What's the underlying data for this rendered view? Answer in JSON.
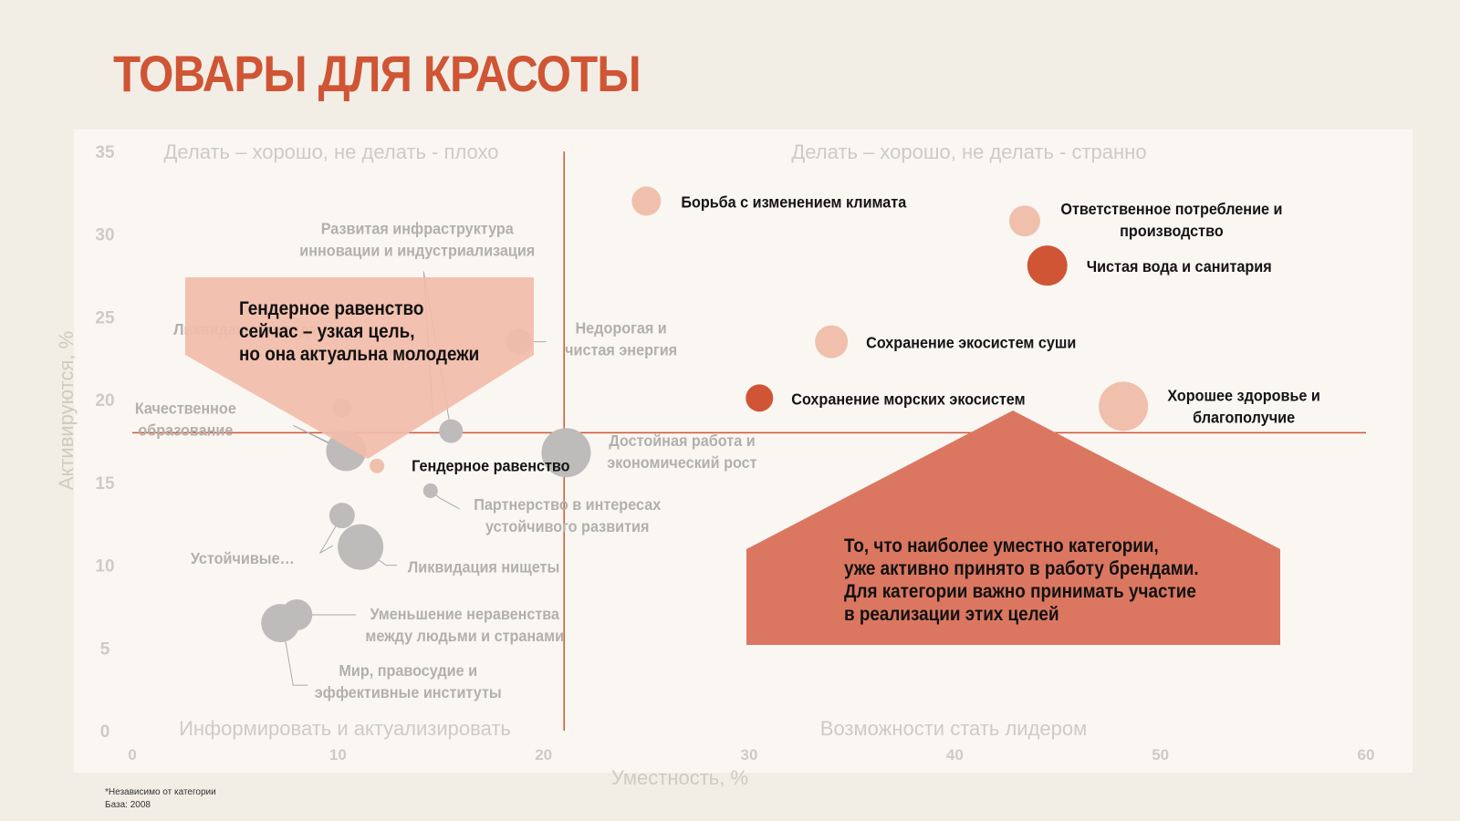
{
  "title": "ТОВАРЫ ДЛЯ КРАСОТЫ",
  "footnote": {
    "line1": "*Независимо от категории",
    "line2": "База: 2008"
  },
  "colors": {
    "accent": "#cf5535",
    "light": "#f0c0ad",
    "gray": "#bdbcbb",
    "quadrant_text": "#cfcac3",
    "gray_label": "#b3b0ab",
    "callout_light": "#f2bca9",
    "callout_dark": "#db7761"
  },
  "chart_data": {
    "type": "scatter",
    "xlabel": "Уместность, %",
    "ylabel": "Активируются, %",
    "xlim": [
      0,
      60
    ],
    "ylim": [
      0,
      35
    ],
    "x_ticks": [
      0,
      10,
      20,
      30,
      40,
      50,
      60
    ],
    "y_ticks": [
      0,
      5,
      10,
      15,
      20,
      25,
      30,
      35
    ],
    "threshold_x": 21,
    "threshold_y": 18,
    "quadrants": {
      "top_left": "Делать – хорошо, не делать - плохо",
      "top_right": "Делать – хорошо, не делать - странно",
      "bottom_left": "Информировать и актуализировать",
      "bottom_right": "Возможности стать лидером"
    },
    "points": [
      {
        "label": [
          "Борьба с изменением климата"
        ],
        "x": 25,
        "y": 32,
        "size": 16,
        "style": "light"
      },
      {
        "label": [
          "Ответственное потребление и",
          "производство"
        ],
        "x": 43.4,
        "y": 30.8,
        "size": 17,
        "style": "light"
      },
      {
        "label": [
          "Чистая вода и санитария"
        ],
        "x": 44.5,
        "y": 28.1,
        "size": 22,
        "style": "dark"
      },
      {
        "label": [
          "Сохранение экосистем суши"
        ],
        "x": 34,
        "y": 23.5,
        "size": 18,
        "style": "light"
      },
      {
        "label": [
          "Сохранение морских экосистем"
        ],
        "x": 30.5,
        "y": 20.1,
        "size": 15,
        "style": "dark"
      },
      {
        "label": [
          "Хорошее здоровье и",
          "благополучие"
        ],
        "x": 48.2,
        "y": 19.6,
        "size": 27,
        "style": "light"
      },
      {
        "label": [
          "Гендерное равенство"
        ],
        "x": 11.9,
        "y": 16,
        "size": 8,
        "style": "light"
      },
      {
        "label": [
          "Развитая инфраструктура",
          "инновации и индустриализация"
        ],
        "x": 15.5,
        "y": 18.1,
        "size": 13,
        "style": "gray"
      },
      {
        "label": [
          "Недорогая и",
          "чистая энергия"
        ],
        "x": 18.8,
        "y": 23.5,
        "size": 14,
        "style": "gray"
      },
      {
        "label": [
          "Достойная работа и",
          "экономический рост"
        ],
        "x": 21.1,
        "y": 16.8,
        "size": 27,
        "style": "gray"
      },
      {
        "label": [
          "Качественное",
          "образование"
        ],
        "x": 10.4,
        "y": 16.9,
        "size": 22,
        "style": "gray"
      },
      {
        "label": [
          "Ликвидация голода"
        ],
        "x": 10.2,
        "y": 19.5,
        "size": 10,
        "style": "gray"
      },
      {
        "label": [
          "Партнерство в интересах",
          "устойчивого развития"
        ],
        "x": 14.5,
        "y": 14.5,
        "size": 8,
        "style": "gray"
      },
      {
        "label": [
          "Устойчивые…"
        ],
        "x": 10.2,
        "y": 13,
        "size": 14,
        "style": "gray"
      },
      {
        "label": [
          "Ликвидация нищеты"
        ],
        "x": 11.1,
        "y": 11.1,
        "size": 25,
        "style": "gray"
      },
      {
        "label": [
          "Уменьшение неравенства",
          "между людьми и странами"
        ],
        "x": 8,
        "y": 7,
        "size": 17,
        "style": "gray"
      },
      {
        "label": [
          "Мир, правосудие и",
          "эффективные институты"
        ],
        "x": 7.2,
        "y": 6.5,
        "size": 21,
        "style": "gray"
      }
    ],
    "annotations": [
      {
        "lines": [
          "Гендерное равенство",
          "сейчас – узкая цель,",
          "но она актуальна молодежи"
        ],
        "style": "light"
      },
      {
        "lines": [
          "То, что наиболее уместно категории,",
          "уже активно принято в работу брендами.",
          "Для категории важно принимать участие",
          "в реализации этих целей"
        ],
        "style": "dark"
      }
    ]
  }
}
